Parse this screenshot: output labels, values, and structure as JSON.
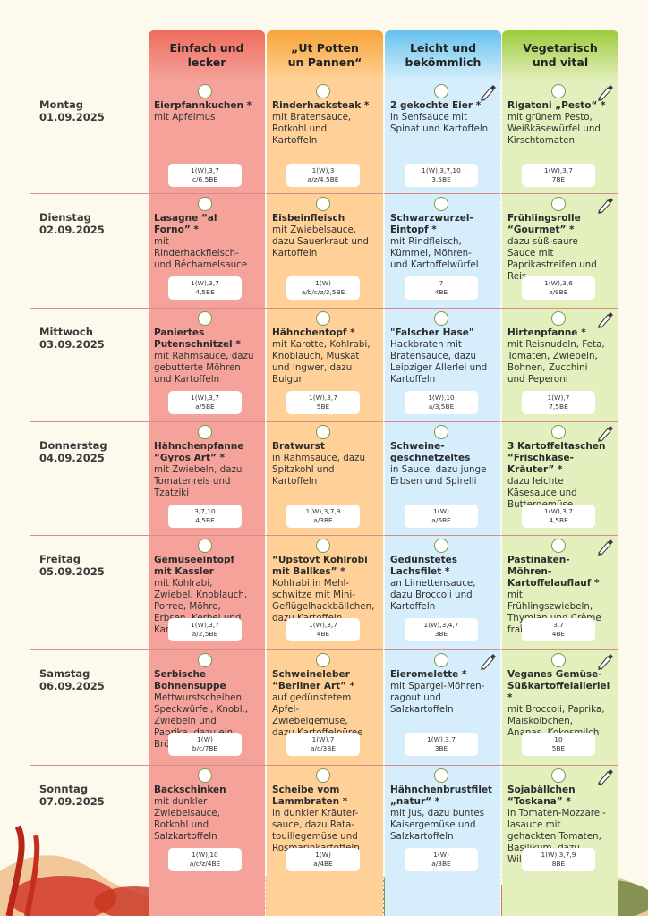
{
  "columns": [
    {
      "label": "Einfach und\nlecker",
      "color": "#f4a29a",
      "header_color": "#ef6c5e"
    },
    {
      "label": "„Ut Potten\nun Pannen“",
      "color": "#ffd198",
      "header_color": "#f8a43a"
    },
    {
      "label": "Leicht und\nbekömmlich",
      "color": "#d6eefb",
      "header_color": "#66c2ee"
    },
    {
      "label": "Vegetarisch\nund vital",
      "color": "#e3efbd",
      "header_color": "#9ccb3c"
    }
  ],
  "days": [
    {
      "weekday": "Montag",
      "date": "01.09.2025",
      "meals": [
        {
          "title": "Eierpfannkuchen *",
          "desc": "mit Apfelmus",
          "allergens": "1(W),3,7",
          "units": "c/6,5BE",
          "pen": false
        },
        {
          "title": "Rinderhacksteak *",
          "desc": "mit Bratensauce, Rotkohl und Kartoffeln",
          "allergens": "1(W),3",
          "units": "a/z/4,5BE",
          "pen": false
        },
        {
          "title": "2 gekochte Eier *",
          "desc": "in Senfsauce mit Spinat und Kartoffeln",
          "allergens": "1(W),3,7,10",
          "units": "3,5BE",
          "pen": true
        },
        {
          "title": "Rigatoni „Pesto“ *",
          "desc": "mit grünem Pesto, Weißkäsewürfel und Kirschtomaten",
          "allergens": "1(W),3,7",
          "units": "7BE",
          "pen": true
        }
      ]
    },
    {
      "weekday": "Dienstag",
      "date": "02.09.2025",
      "meals": [
        {
          "title": "Lasagne “al Forno” *",
          "desc": "mit Rinderhackfleisch- und Béchamelsauce",
          "allergens": "1(W),3,7",
          "units": "4,5BE",
          "pen": false
        },
        {
          "title": "Eisbeinfleisch",
          "desc": "mit Zwiebelsauce, dazu Sauerkraut und Kartoffeln",
          "allergens": "1(W)",
          "units": "a/b/c/z/3,5BE",
          "pen": false
        },
        {
          "title": "Schwarzwurzel-Eintopf *",
          "desc": "mit Rindfleisch, Kümmel, Möhren- und Kartoffelwürfel",
          "allergens": "7",
          "units": "4BE",
          "pen": false
        },
        {
          "title": "Frühlingsrolle “Gourmet” *",
          "desc": "dazu süß-saure Sauce mit Paprikastreifen und Reis",
          "allergens": "1(W),3,6",
          "units": "z/9BE",
          "pen": true
        }
      ]
    },
    {
      "weekday": "Mittwoch",
      "date": "03.09.2025",
      "meals": [
        {
          "title": "Paniertes Putenschnitzel *",
          "desc": "mit Rahmsauce, dazu gebutterte Möhren und Kartoffeln",
          "allergens": "1(W),3,7",
          "units": "a/5BE",
          "pen": false
        },
        {
          "title": "Hähnchentopf *",
          "desc": "mit Karotte, Kohlrabi, Knoblauch, Muskat und Ingwer, dazu Bulgur",
          "allergens": "1(W),3,7",
          "units": "5BE",
          "pen": false
        },
        {
          "title": "\"Falscher Hase\"",
          "desc": "Hackbraten mit Bratensauce, dazu Leipziger Allerlei und Kartoffeln",
          "allergens": "1(W),10",
          "units": "a/3,5BE",
          "pen": false
        },
        {
          "title": "Hirtenpfanne *",
          "desc": "mit Reisnudeln, Feta, Tomaten, Zwiebeln, Bohnen, Zucchini und Peperoni",
          "allergens": "1(W),7",
          "units": "7,5BE",
          "pen": true
        }
      ]
    },
    {
      "weekday": "Donnerstag",
      "date": "04.09.2025",
      "meals": [
        {
          "title": "Hähnchenpfanne “Gyros Art” *",
          "desc": "mit Zwiebeln, dazu Tomatenreis und Tzatziki",
          "allergens": "3,7,10",
          "units": "4,5BE",
          "pen": false
        },
        {
          "title": "Bratwurst",
          "desc": "in Rahmsauce, dazu Spitzkohl und Kartoffeln",
          "allergens": "1(W),3,7,9",
          "units": "a/3BE",
          "pen": false
        },
        {
          "title": "Schweine-geschnetzeltes",
          "desc": "in Sauce, dazu junge Erbsen und Spirelli",
          "allergens": "1(W)",
          "units": "a/6BE",
          "pen": false
        },
        {
          "title": "3 Kartoffeltaschen “Frischkäse-Kräuter” *",
          "desc": "dazu leichte Käsesauce und Buttergemüse",
          "allergens": "1(W),3,7",
          "units": "4,5BE",
          "pen": true
        }
      ]
    },
    {
      "weekday": "Freitag",
      "date": "05.09.2025",
      "meals": [
        {
          "title": "Gemüseeintopf mit Kassler",
          "desc": "mit Kohlrabi, Zwiebel, Knoblauch, Porree, Möhre, Erbsen, Kerbel und Kartoffelwürfel",
          "allergens": "1(W),3,7",
          "units": "a/2,5BE",
          "pen": false
        },
        {
          "title": "“Upstövt Kohlrobi mit Ballkes” *",
          "desc": "Kohlrabi in Mehl-schwitze mit Mini-Geflügelhackbällchen, dazu Kartoffeln",
          "allergens": "1(W),3,7",
          "units": "4BE",
          "pen": false
        },
        {
          "title": "Gedünstetes Lachsfilet *",
          "desc": "an Limettensauce, dazu Broccoli und Kartoffeln",
          "allergens": "1(W),3,4,7",
          "units": "3BE",
          "pen": false
        },
        {
          "title": "Pastinaken-Möhren-Kartoffelauflauf *",
          "desc": "mit Frühlingszwiebeln, Thymian und Crème fraîche",
          "allergens": "3,7",
          "units": "4BE",
          "pen": true
        }
      ]
    },
    {
      "weekday": "Samstag",
      "date": "06.09.2025",
      "meals": [
        {
          "title": "Serbische Bohnensuppe",
          "desc": "Mettwurstscheiben, Speckwürfel, Knobl., Zwiebeln und Paprika, dazu ein Brötchen",
          "allergens": "1(W)",
          "units": "b/c/7BE",
          "pen": false
        },
        {
          "title": "Schweineleber “Berliner Art” *",
          "desc": "auf gedünstetem Apfel-Zwiebelgemüse, dazu Kartoffelpüree",
          "allergens": "1(W),7",
          "units": "a/c/3BE",
          "pen": false
        },
        {
          "title": "Eieromelette *",
          "desc": "mit Spargel-Möhren-ragout und Salzkartoffeln",
          "allergens": "1(W),3,7",
          "units": "3BE",
          "pen": true
        },
        {
          "title": "Veganes Gemüse-Süßkartoffelallerlei *",
          "desc": "mit Broccoli, Paprika, Maiskölbchen, Ananas, Kokosmilch",
          "allergens": "10",
          "units": "5BE",
          "pen": true
        }
      ]
    },
    {
      "weekday": "Sonntag",
      "date": "07.09.2025",
      "meals": [
        {
          "title": "Backschinken",
          "desc": "mit dunkler Zwiebelsauce, Rotkohl und Salzkartoffeln",
          "allergens": "1(W),10",
          "units": "a/c/z/4BE",
          "pen": false
        },
        {
          "title": "Scheibe vom Lammbraten *",
          "desc": "in dunkler Kräuter-sauce, dazu Rata-touillegemüse und Rosmarinkartoffeln",
          "allergens": "1(W)",
          "units": "a/4BE",
          "pen": false
        },
        {
          "title": "Hähnchenbrustfilet „natur“ *",
          "desc": "mit Jus, dazu buntes Kaisergemüse und Salzkartoffeln",
          "allergens": "1(W)",
          "units": "a/3BE",
          "pen": false
        },
        {
          "title": "Sojabällchen “Toskana” *",
          "desc": "in Tomaten-Mozzarel-lasauce mit gehackten Tomaten, Basilikum, dazu Wildreis",
          "allergens": "1(W),3,7,9",
          "units": "8BE",
          "pen": true
        }
      ]
    }
  ]
}
